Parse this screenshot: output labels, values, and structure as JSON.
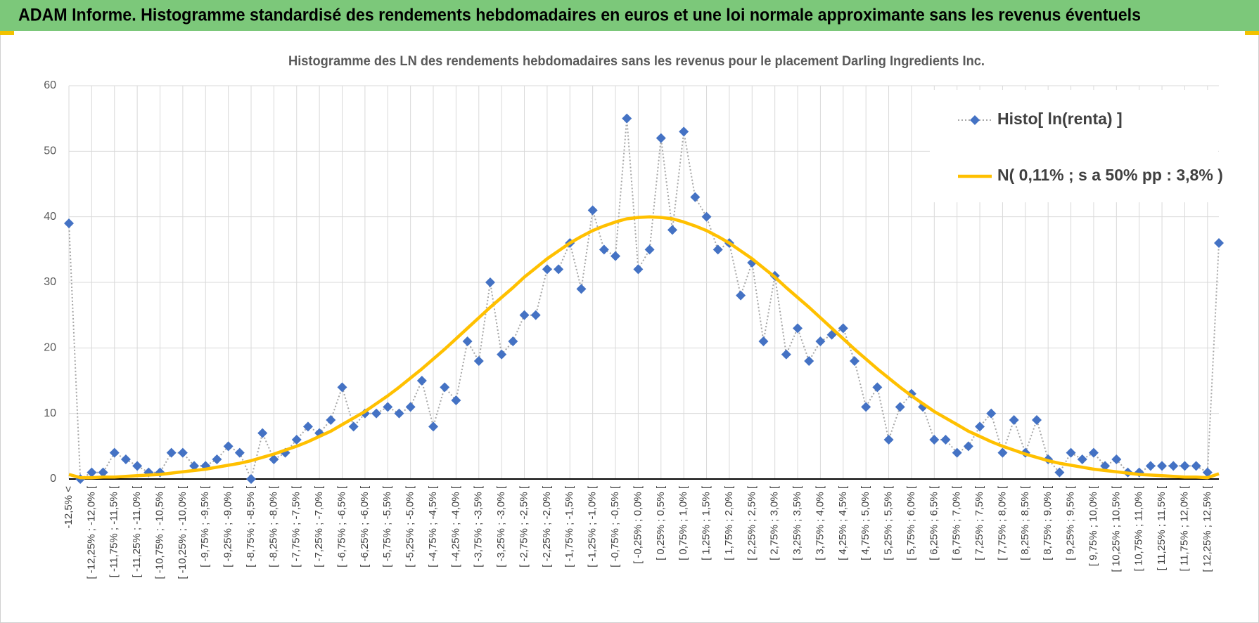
{
  "header": {
    "title": "ADAM Informe. Histogramme standardisé des rendements hebdomadaires en euros et une loi normale approximante sans les revenus éventuels"
  },
  "chart_data": {
    "type": "line",
    "title": "Histogramme des LN des rendements hebdomadaires sans les revenus pour le placement Darling Ingredients Inc.",
    "categories": [
      "-12,5% <",
      null,
      "[ -12,25% ; -12,0% [",
      null,
      "[ -11,75% ; -11,5% [",
      null,
      "[ -11,25% ; -11,0% [",
      null,
      "[ -10,75% ; -10,5% [",
      null,
      "[ -10,25% ; -10,0% [",
      null,
      "[ -9,75% ; -9,5% [",
      null,
      "[ -9,25% ; -9,0% [",
      null,
      "[ -8,75% ; -8,5% [",
      null,
      "[ -8,25% ; -8,0% [",
      null,
      "[ -7,75% ; -7,5% [",
      null,
      "[ -7,25% ; -7,0% [",
      null,
      "[ -6,75% ; -6,5% [",
      null,
      "[ -6,25% ; -6,0% [",
      null,
      "[ -5,75% ; -5,5% [",
      null,
      "[ -5,25% ; -5,0% [",
      null,
      "[ -4,75% ; -4,5% [",
      null,
      "[ -4,25% ; -4,0% [",
      null,
      "[ -3,75% ; -3,5% [",
      null,
      "[ -3,25% ; -3,0% [",
      null,
      "[ -2,75% ; -2,5% [",
      null,
      "[ -2,25% ; -2,0% [",
      null,
      "[ -1,75% ; -1,5% [",
      null,
      "[ -1,25% ; -1,0% [",
      null,
      "[ -0,75% ; -0,5% [",
      null,
      "[ -0,25% ; 0,0% [",
      null,
      "[ 0,25% ; 0,5% [",
      null,
      "[ 0,75% ; 1,0% [",
      null,
      "[ 1,25% ; 1,5% [",
      null,
      "[ 1,75% ; 2,0% [",
      null,
      "[ 2,25% ; 2,5% [",
      null,
      "[ 2,75% ; 3,0% [",
      null,
      "[ 3,25% ; 3,5% [",
      null,
      "[ 3,75% ; 4,0% [",
      null,
      "[ 4,25% ; 4,5% [",
      null,
      "[ 4,75% ; 5,0% [",
      null,
      "[ 5,25% ; 5,5% [",
      null,
      "[ 5,75% ; 6,0% [",
      null,
      "[ 6,25% ; 6,5% [",
      null,
      "[ 6,75% ; 7,0% [",
      null,
      "[ 7,25% ; 7,5% [",
      null,
      "[ 7,75% ; 8,0% [",
      null,
      "[ 8,25% ; 8,5% [",
      null,
      "[ 8,75% ; 9,0% [",
      null,
      "[ 9,25% ; 9,5% [",
      null,
      "[ 9,75% ; 10,0% [",
      null,
      "[ 10,25% ; 10,5% [",
      null,
      "[ 10,75% ; 11,0% [",
      null,
      "[ 11,25% ; 11,5% [",
      null,
      "[ 11,75% ; 12,0% [",
      null,
      "[ 12,25% ; 12,5% [",
      null
    ],
    "series": [
      {
        "name": "Histo[ ln(renta) ]",
        "color": "#4472c4",
        "line_color": "#a6a6a6",
        "values": [
          39,
          0,
          1,
          1,
          4,
          3,
          2,
          1,
          1,
          4,
          4,
          2,
          2,
          3,
          5,
          4,
          0,
          7,
          3,
          4,
          6,
          8,
          7,
          9,
          14,
          8,
          10,
          10,
          11,
          10,
          11,
          15,
          8,
          14,
          12,
          21,
          18,
          30,
          19,
          21,
          25,
          25,
          32,
          32,
          36,
          29,
          41,
          35,
          34,
          55,
          32,
          35,
          52,
          38,
          53,
          43,
          40,
          35,
          36,
          28,
          33,
          21,
          31,
          19,
          23,
          18,
          21,
          22,
          23,
          18,
          11,
          14,
          6,
          11,
          13,
          11,
          6,
          6,
          4,
          5,
          8,
          10,
          4,
          9,
          4,
          9,
          3,
          1,
          4,
          3,
          4,
          2,
          3,
          1,
          1,
          2,
          2,
          2,
          2,
          2,
          1,
          36
        ]
      },
      {
        "name": "N( 0,11% ; s a 50% pp : 3,8% )",
        "color": "#ffc000",
        "values": [
          0.7,
          0.2,
          0.2,
          0.3,
          0.3,
          0.4,
          0.5,
          0.6,
          0.7,
          0.9,
          1.1,
          1.3,
          1.5,
          1.8,
          2.1,
          2.4,
          2.8,
          3.3,
          3.8,
          4.4,
          5.0,
          5.7,
          6.5,
          7.3,
          8.3,
          9.3,
          10.3,
          11.5,
          12.7,
          14.0,
          15.4,
          16.8,
          18.3,
          19.8,
          21.4,
          23.0,
          24.6,
          26.2,
          27.7,
          29.2,
          30.8,
          32.2,
          33.6,
          34.8,
          36.0,
          37.0,
          37.9,
          38.6,
          39.2,
          39.7,
          39.9,
          40,
          39.9,
          39.7,
          39.2,
          38.6,
          37.9,
          37.0,
          36.0,
          34.8,
          33.6,
          32.2,
          30.8,
          29.2,
          27.7,
          26.2,
          24.6,
          23.0,
          21.4,
          19.8,
          18.3,
          16.8,
          15.4,
          14.0,
          12.7,
          11.5,
          10.3,
          9.3,
          8.3,
          7.3,
          6.5,
          5.7,
          5.0,
          4.4,
          3.8,
          3.3,
          2.8,
          2.4,
          2.1,
          1.8,
          1.5,
          1.3,
          1.1,
          0.9,
          0.7,
          0.6,
          0.5,
          0.4,
          0.3,
          0.3,
          0.2,
          0.8
        ]
      }
    ],
    "ylim": [
      0,
      60
    ],
    "yticks": [
      0,
      10,
      20,
      30,
      40,
      50,
      60
    ],
    "grid": true,
    "legend": "top-right"
  }
}
